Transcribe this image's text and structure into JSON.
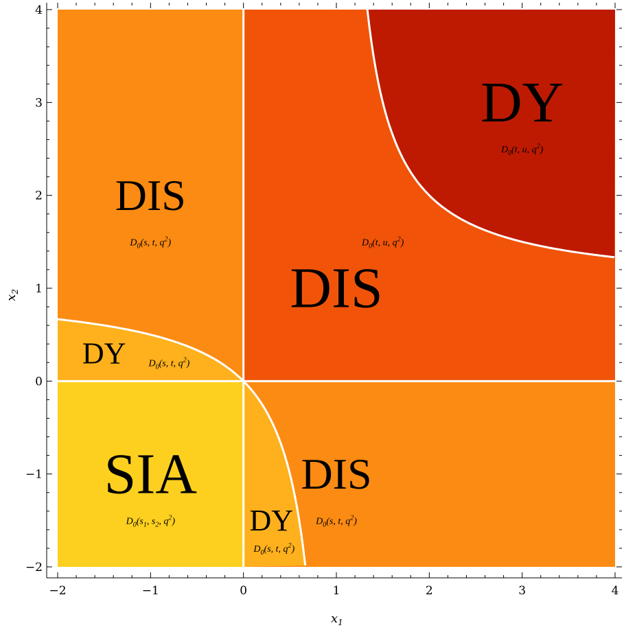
{
  "axes": {
    "x_title": "x",
    "x_title_sub": "1",
    "y_title": "x",
    "y_title_sub": "2",
    "xlim": [
      -2,
      4
    ],
    "ylim": [
      -2,
      4
    ],
    "x_ticks": [
      "−2",
      "−1",
      "0",
      "1",
      "2",
      "3",
      "4"
    ],
    "y_ticks": [
      "−2",
      "−1",
      "0",
      "1",
      "2",
      "3",
      "4"
    ]
  },
  "colors": {
    "region_SIA": "#fdd01f",
    "region_DY_small": "#feb11d",
    "region_DIS_outer": "#fc8b13",
    "region_DIS_center": "#f15409",
    "region_DY_large": "#be1a02",
    "boundary": "#ffffff"
  },
  "regions": [
    {
      "id": "sia",
      "name": "SIA",
      "x": -1.0,
      "y": -1.0,
      "size": "xl",
      "formula": {
        "pre": "D",
        "sub": "0",
        "args": "(s",
        "args_sub": "1",
        "mid": ", s",
        "mid_sub": "2",
        "tail": ", q",
        "sup": "2",
        "end": ")"
      },
      "fx": -1.0,
      "fy": -1.5
    },
    {
      "id": "dy-bottom",
      "name": "DY",
      "x": 0.3,
      "y": -1.5,
      "size": "m",
      "formula": {
        "pre": "D",
        "sub": "0",
        "args": "(s, t, q",
        "sup": "2",
        "end": ")"
      },
      "fx": 0.33,
      "fy": -1.8
    },
    {
      "id": "dis-bottom-right",
      "name": "DIS",
      "x": 1.0,
      "y": -1.0,
      "size": "l",
      "formula": {
        "pre": "D",
        "sub": "0",
        "args": "(s, t, q",
        "sup": "2",
        "end": ")"
      },
      "fx": 1.0,
      "fy": -1.5
    },
    {
      "id": "dy-left",
      "name": "DY",
      "x": -1.5,
      "y": 0.3,
      "size": "m",
      "formula": {
        "pre": "D",
        "sub": "0",
        "args": "(s, t, q",
        "sup": "2",
        "end": ")"
      },
      "fx": -0.8,
      "fy": 0.2
    },
    {
      "id": "dis-left",
      "name": "DIS",
      "x": -1.0,
      "y": 2.0,
      "size": "l",
      "formula": {
        "pre": "D",
        "sub": "0",
        "args": "(s, t, q",
        "sup": "2",
        "end": ")"
      },
      "fx": -1.0,
      "fy": 1.5
    },
    {
      "id": "dis-center",
      "name": "DIS",
      "x": 1.0,
      "y": 1.0,
      "size": "xl",
      "formula": {
        "pre": "D",
        "sub": "0",
        "args": "(t, u, q",
        "sup": "2",
        "end": ")"
      },
      "fx": 1.5,
      "fy": 1.5
    },
    {
      "id": "dy-top-right",
      "name": "DY",
      "x": 3.0,
      "y": 3.0,
      "size": "xl",
      "formula": {
        "pre": "D",
        "sub": "0",
        "args": "(t, u, q",
        "sup": "2",
        "end": ")"
      },
      "fx": 3.0,
      "fy": 2.5
    }
  ]
}
